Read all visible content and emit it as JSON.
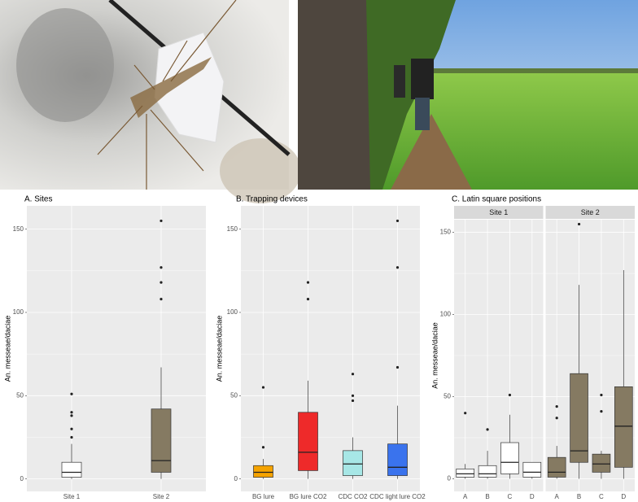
{
  "chart_data": [
    {
      "type": "box",
      "title": "A. Sites",
      "ylabel": "An. messeae/daciae",
      "categories": [
        "Site 1",
        "Site 2"
      ],
      "boxes": [
        {
          "min": 0,
          "q1": 1,
          "median": 4,
          "q3": 10,
          "max": 21,
          "outliers": [
            25,
            30,
            38,
            40,
            51
          ],
          "color": "#ffffff"
        },
        {
          "min": 0,
          "q1": 4,
          "median": 11,
          "q3": 42,
          "max": 67,
          "outliers": [
            108,
            118,
            127,
            155
          ],
          "color": "#857a62"
        }
      ],
      "ylim": [
        -7.5,
        164
      ],
      "yticks": [
        0,
        50,
        100,
        150
      ],
      "grid": true
    },
    {
      "type": "box",
      "title": "B. Trapping devices",
      "ylabel": "An. messeae/daciae",
      "categories": [
        "BG lure",
        "BG lure CO2",
        "CDC CO2",
        "CDC light lure CO2"
      ],
      "boxes": [
        {
          "min": 0,
          "q1": 1,
          "median": 4,
          "q3": 8,
          "max": 12,
          "outliers": [
            19,
            55
          ],
          "color": "#f5a300"
        },
        {
          "min": 0,
          "q1": 5,
          "median": 16,
          "q3": 40,
          "max": 59,
          "outliers": [
            108,
            118
          ],
          "color": "#ee2a2a"
        },
        {
          "min": 0,
          "q1": 2,
          "median": 9,
          "q3": 17,
          "max": 25,
          "outliers": [
            47,
            50,
            63
          ],
          "color": "#a7e7e6"
        },
        {
          "min": 0,
          "q1": 2,
          "median": 7,
          "q3": 21,
          "max": 44,
          "outliers": [
            67,
            127,
            155
          ],
          "color": "#3a73ed"
        }
      ],
      "ylim": [
        -7.5,
        164
      ],
      "yticks": [
        0,
        50,
        100,
        150
      ],
      "grid": true
    },
    {
      "type": "facet-box",
      "title": "C. Latin square positions",
      "ylabel": "An. messeae/daciae",
      "facets": [
        {
          "name": "Site 1",
          "categories": [
            "A",
            "B",
            "C",
            "D"
          ],
          "color": "#ffffff",
          "boxes": [
            {
              "min": 0,
              "q1": 1,
              "median": 3,
              "q3": 6,
              "max": 9,
              "outliers": [
                40
              ]
            },
            {
              "min": 0,
              "q1": 1,
              "median": 3,
              "q3": 8,
              "max": 17,
              "outliers": [
                30
              ]
            },
            {
              "min": 0,
              "q1": 3,
              "median": 10,
              "q3": 22,
              "max": 39,
              "outliers": [
                51
              ]
            },
            {
              "min": 0,
              "q1": 1,
              "median": 4,
              "q3": 10,
              "max": 10,
              "outliers": []
            }
          ]
        },
        {
          "name": "Site 2",
          "categories": [
            "A",
            "B",
            "C",
            "D"
          ],
          "color": "#857a62",
          "boxes": [
            {
              "min": 0,
              "q1": 1,
              "median": 4,
              "q3": 13,
              "max": 20,
              "outliers": [
                37,
                44
              ]
            },
            {
              "min": 0,
              "q1": 10,
              "median": 17,
              "q3": 64,
              "max": 118,
              "outliers": [
                155
              ]
            },
            {
              "min": 0,
              "q1": 4,
              "median": 9,
              "q3": 15,
              "max": 17,
              "outliers": [
                41,
                51
              ]
            },
            {
              "min": 0,
              "q1": 7,
              "median": 32,
              "q3": 56,
              "max": 127,
              "outliers": []
            }
          ]
        }
      ],
      "ylim": [
        -7.7,
        157.7
      ],
      "yticks": [
        0,
        50,
        100,
        150
      ],
      "grid": true
    }
  ]
}
